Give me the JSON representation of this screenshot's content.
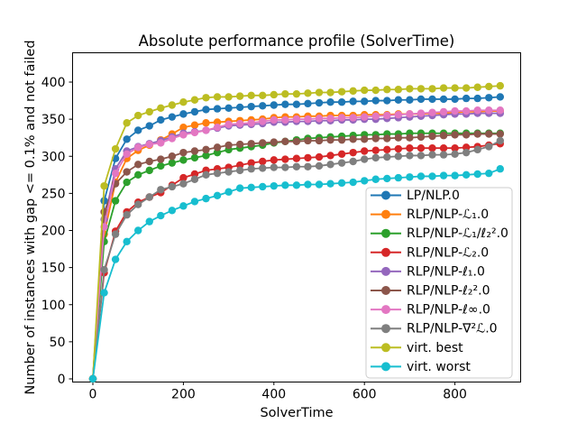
{
  "figure": {
    "background": "#ffffff"
  },
  "chart_data": {
    "type": "line",
    "title": "Absolute performance profile (SolverTime)",
    "xlabel": "SolverTime",
    "ylabel": "Number of instances with gap <= 0.1% and not failed",
    "x_ticks": [
      0,
      200,
      400,
      600,
      800
    ],
    "y_ticks": [
      0,
      50,
      100,
      150,
      200,
      250,
      300,
      350,
      400
    ],
    "xlim": [
      -45,
      945
    ],
    "ylim": [
      -5,
      439
    ],
    "grid": false,
    "legend_position": "lower right",
    "marker": "o",
    "x": [
      0,
      25,
      50,
      75,
      100,
      125,
      150,
      175,
      200,
      225,
      250,
      275,
      300,
      325,
      350,
      375,
      400,
      425,
      450,
      475,
      500,
      525,
      550,
      575,
      600,
      625,
      650,
      675,
      700,
      725,
      750,
      775,
      800,
      825,
      850,
      875,
      900
    ],
    "series": [
      {
        "name": "LP/NLP.0",
        "color": "#1f77b4",
        "values": [
          0,
          240,
          297,
          323,
          335,
          341,
          349,
          353,
          357,
          360,
          363,
          364,
          365,
          366,
          367,
          368,
          369,
          370,
          370,
          371,
          372,
          373,
          373,
          374,
          374,
          375,
          375,
          376,
          376,
          377,
          377,
          377,
          377,
          378,
          378,
          379,
          380
        ]
      },
      {
        "name": "RLP/NLP-ℒ₁.0",
        "color": "#ff7f0e",
        "values": [
          0,
          195,
          265,
          297,
          308,
          315,
          322,
          330,
          339,
          342,
          345,
          346,
          347,
          348,
          349,
          350,
          352,
          353,
          353,
          354,
          354,
          355,
          355,
          355,
          356,
          356,
          356,
          357,
          357,
          357,
          358,
          358,
          359,
          360,
          360,
          361,
          361
        ]
      },
      {
        "name": "RLP/NLP-ℒ₁/ℓ₂².0",
        "color": "#2ca02c",
        "values": [
          0,
          185,
          240,
          265,
          275,
          281,
          287,
          291,
          295,
          298,
          301,
          305,
          309,
          311,
          313,
          315,
          318,
          320,
          322,
          324,
          325,
          326,
          327,
          328,
          329,
          329,
          330,
          330,
          331,
          331,
          331,
          331,
          331,
          331,
          331,
          331,
          331
        ]
      },
      {
        "name": "RLP/NLP-ℒ₂.0",
        "color": "#d62728",
        "values": [
          0,
          143,
          199,
          225,
          238,
          245,
          251,
          261,
          271,
          276,
          281,
          283,
          285,
          288,
          291,
          293,
          295,
          296,
          297,
          298,
          299,
          301,
          303,
          305,
          307,
          308,
          309,
          310,
          311,
          311,
          311,
          311,
          311,
          312,
          313,
          315,
          317
        ]
      },
      {
        "name": "RLP/NLP-ℓ₁.0",
        "color": "#9467bd",
        "values": [
          0,
          215,
          283,
          307,
          313,
          317,
          321,
          326,
          331,
          333,
          335,
          338,
          341,
          342,
          343,
          344,
          346,
          346,
          347,
          347,
          348,
          348,
          349,
          349,
          350,
          350,
          351,
          352,
          353,
          354,
          355,
          356,
          357,
          357,
          358,
          358,
          358
        ]
      },
      {
        "name": "RLP/NLP-ℓ₂².0",
        "color": "#8c564b",
        "values": [
          0,
          225,
          263,
          279,
          289,
          293,
          296,
          300,
          305,
          307,
          309,
          312,
          315,
          316,
          317,
          318,
          319,
          320,
          320,
          321,
          321,
          322,
          322,
          323,
          323,
          324,
          324,
          325,
          325,
          326,
          327,
          328,
          329,
          329,
          330,
          330,
          330
        ]
      },
      {
        "name": "RLP/NLP-ℓ∞.0",
        "color": "#e377c2",
        "values": [
          0,
          205,
          277,
          303,
          312,
          316,
          318,
          324,
          329,
          332,
          335,
          339,
          343,
          344,
          345,
          347,
          349,
          349,
          350,
          350,
          351,
          351,
          352,
          352,
          353,
          354,
          355,
          356,
          357,
          358,
          359,
          360,
          361,
          361,
          362,
          362,
          362
        ]
      },
      {
        "name": "RLP/NLP-∇²ℒ.0",
        "color": "#7f7f7f",
        "values": [
          0,
          147,
          195,
          221,
          235,
          245,
          255,
          259,
          263,
          269,
          275,
          277,
          279,
          281,
          283,
          284,
          285,
          285,
          286,
          286,
          287,
          289,
          291,
          293,
          296,
          298,
          299,
          300,
          301,
          301,
          302,
          302,
          303,
          305,
          309,
          313,
          321
        ]
      },
      {
        "name": "virt. best",
        "color": "#bcbd22",
        "values": [
          0,
          260,
          310,
          345,
          355,
          360,
          365,
          369,
          373,
          376,
          379,
          380,
          380,
          381,
          382,
          382,
          383,
          384,
          384,
          385,
          386,
          386,
          387,
          388,
          389,
          389,
          390,
          390,
          391,
          391,
          391,
          392,
          392,
          392,
          393,
          394,
          395
        ]
      },
      {
        "name": "virt. worst",
        "color": "#17becf",
        "values": [
          0,
          116,
          161,
          185,
          200,
          212,
          220,
          227,
          233,
          239,
          243,
          247,
          252,
          257,
          258,
          259,
          260,
          261,
          261,
          262,
          262,
          263,
          264,
          265,
          267,
          269,
          270,
          271,
          272,
          273,
          273,
          274,
          274,
          275,
          276,
          277,
          283
        ]
      }
    ]
  }
}
